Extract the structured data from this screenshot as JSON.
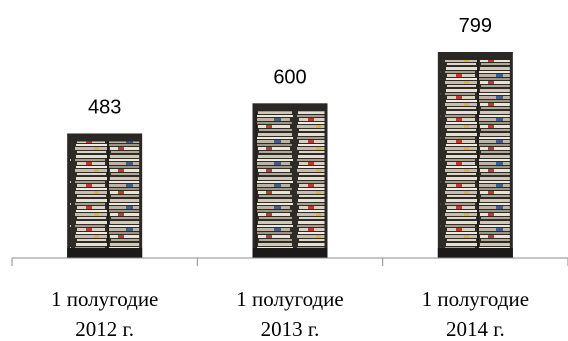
{
  "chart_data": {
    "type": "bar",
    "categories": [
      [
        "1 полугодие",
        "2012 г."
      ],
      [
        "1 полугодие",
        "2013 г."
      ],
      [
        "1 полугодие",
        "2014 г."
      ]
    ],
    "values": [
      483,
      600,
      799
    ],
    "data_labels": [
      "483",
      "600",
      "799"
    ],
    "ylim": [
      0,
      799
    ],
    "grid": false,
    "legend": "none",
    "bar_fill": "stacked-newspapers-photo",
    "colors": {
      "axis": "#8c8c8c",
      "text": "#000000",
      "bar_dark": "#2a2724",
      "paper_light": "#e6e1d6",
      "paper_mid": "#b7ada0",
      "accent_red": "#b83a2e",
      "accent_blue": "#3e5f8a",
      "accent_yellow": "#d2b64c"
    }
  }
}
